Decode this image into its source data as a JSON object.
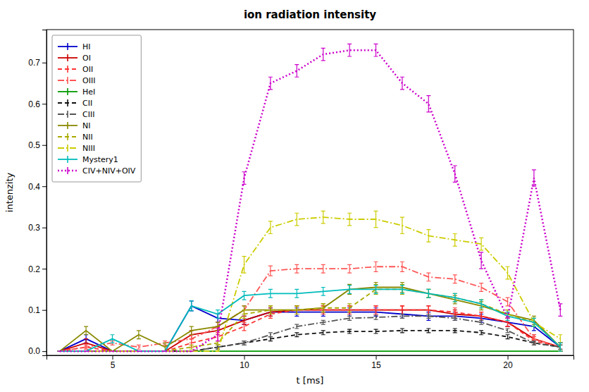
{
  "chart_data": {
    "type": "line",
    "title": "ion radiation intensity",
    "x_label": "t [ms]",
    "y_label": "intenzity",
    "xlim": [
      2.5,
      22.5
    ],
    "ylim": [
      -0.01,
      0.78
    ],
    "xticks": [
      5,
      10,
      15,
      20
    ],
    "yticks": [
      {
        "value": 0.0,
        "label": "0.0"
      },
      0.1,
      0.2,
      0.3,
      0.4,
      0.5,
      0.6,
      0.7
    ],
    "grid": false,
    "legend": "upper left",
    "series": [
      {
        "name": "HI",
        "color": "#0000cc",
        "line_style": "solid",
        "x": [
          3,
          4,
          5,
          6,
          7,
          8,
          9,
          10,
          11,
          12,
          13,
          14,
          15,
          16,
          17,
          18,
          19,
          20,
          21,
          22
        ],
        "values": [
          0.0,
          0.03,
          0.0,
          0.0,
          0.0,
          0.11,
          0.08,
          0.075,
          0.095,
          0.095,
          0.095,
          0.095,
          0.095,
          0.09,
          0.085,
          0.085,
          0.08,
          0.07,
          0.06,
          0.01
        ],
        "errors": [
          0.0,
          0.01,
          0.0,
          0.0,
          0.0,
          0.012,
          0.01,
          0.01,
          0.01,
          0.01,
          0.01,
          0.01,
          0.01,
          0.01,
          0.01,
          0.01,
          0.01,
          0.01,
          0.01,
          0.01
        ]
      },
      {
        "name": "OI",
        "color": "#cc0000",
        "line_style": "solid",
        "x": [
          3,
          4,
          5,
          6,
          7,
          8,
          9,
          10,
          11,
          12,
          13,
          14,
          15,
          16,
          17,
          18,
          19,
          20,
          21,
          22
        ],
        "values": [
          0.0,
          0.02,
          0.0,
          0.0,
          0.0,
          0.04,
          0.05,
          0.075,
          0.095,
          0.1,
          0.1,
          0.1,
          0.1,
          0.1,
          0.1,
          0.09,
          0.085,
          0.07,
          0.03,
          0.01
        ],
        "errors": [
          0.0,
          0.01,
          0.0,
          0.0,
          0.0,
          0.01,
          0.01,
          0.01,
          0.01,
          0.01,
          0.01,
          0.01,
          0.01,
          0.01,
          0.01,
          0.01,
          0.01,
          0.01,
          0.01,
          0.01
        ]
      },
      {
        "name": "OII",
        "color": "#ff3333",
        "line_style": "dashed",
        "x": [
          3,
          4,
          5,
          6,
          7,
          8,
          9,
          10,
          11,
          12,
          13,
          14,
          15,
          16,
          17,
          18,
          19,
          20,
          21,
          22
        ],
        "values": [
          0.0,
          0.01,
          0.0,
          0.0,
          0.0,
          0.02,
          0.035,
          0.06,
          0.09,
          0.1,
          0.1,
          0.1,
          0.1,
          0.1,
          0.1,
          0.095,
          0.085,
          0.07,
          0.025,
          0.01
        ],
        "errors": [
          0.0,
          0.005,
          0.0,
          0.0,
          0.0,
          0.01,
          0.01,
          0.01,
          0.01,
          0.01,
          0.01,
          0.01,
          0.01,
          0.01,
          0.01,
          0.01,
          0.01,
          0.01,
          0.01,
          0.01
        ]
      },
      {
        "name": "OIII",
        "color": "#ff5555",
        "line_style": "dashdot",
        "x": [
          3,
          4,
          5,
          6,
          7,
          8,
          9,
          10,
          11,
          12,
          13,
          14,
          15,
          16,
          17,
          18,
          19,
          20,
          21,
          22
        ],
        "values": [
          0.0,
          0.01,
          0.02,
          0.01,
          0.02,
          0.03,
          0.06,
          0.1,
          0.195,
          0.2,
          0.2,
          0.2,
          0.205,
          0.205,
          0.18,
          0.175,
          0.155,
          0.12,
          0.03,
          0.01
        ],
        "errors": [
          0.0,
          0.005,
          0.005,
          0.005,
          0.005,
          0.01,
          0.01,
          0.01,
          0.012,
          0.01,
          0.01,
          0.01,
          0.012,
          0.012,
          0.01,
          0.01,
          0.01,
          0.01,
          0.01,
          0.01
        ]
      },
      {
        "name": "HeI",
        "color": "#009900",
        "line_style": "solid",
        "x": [
          3,
          22
        ],
        "values": [
          0.0,
          0.0
        ],
        "errors": [
          0.0,
          0.0
        ]
      },
      {
        "name": "CII",
        "color": "#111111",
        "line_style": "dashed",
        "x": [
          3,
          4,
          5,
          6,
          7,
          8,
          9,
          10,
          11,
          12,
          13,
          14,
          15,
          16,
          17,
          18,
          19,
          20,
          21,
          22
        ],
        "values": [
          0.0,
          0.0,
          0.0,
          0.0,
          0.0,
          0.0,
          0.01,
          0.02,
          0.03,
          0.04,
          0.045,
          0.048,
          0.048,
          0.05,
          0.05,
          0.05,
          0.045,
          0.035,
          0.02,
          0.01
        ],
        "errors": [
          0.0,
          0.0,
          0.0,
          0.0,
          0.0,
          0.0,
          0.005,
          0.005,
          0.005,
          0.005,
          0.005,
          0.005,
          0.005,
          0.005,
          0.005,
          0.005,
          0.005,
          0.005,
          0.005,
          0.005
        ]
      },
      {
        "name": "CIII",
        "color": "#555555",
        "line_style": "dashdot",
        "x": [
          3,
          4,
          5,
          6,
          7,
          8,
          9,
          10,
          11,
          12,
          13,
          14,
          15,
          16,
          17,
          18,
          19,
          20,
          21,
          22
        ],
        "values": [
          0.0,
          0.0,
          0.0,
          0.0,
          0.0,
          0.0,
          0.01,
          0.02,
          0.04,
          0.06,
          0.07,
          0.08,
          0.082,
          0.085,
          0.085,
          0.08,
          0.07,
          0.05,
          0.02,
          0.01
        ],
        "errors": [
          0.0,
          0.0,
          0.0,
          0.0,
          0.0,
          0.0,
          0.005,
          0.005,
          0.005,
          0.005,
          0.005,
          0.005,
          0.005,
          0.005,
          0.005,
          0.005,
          0.005,
          0.005,
          0.005,
          0.005
        ]
      },
      {
        "name": "NI",
        "color": "#888800",
        "line_style": "solid",
        "x": [
          3,
          4,
          5,
          6,
          7,
          8,
          9,
          10,
          11,
          12,
          13,
          14,
          15,
          16,
          17,
          18,
          19,
          20,
          21,
          22
        ],
        "values": [
          0.0,
          0.05,
          0.0,
          0.04,
          0.01,
          0.05,
          0.06,
          0.1,
          0.1,
          0.1,
          0.105,
          0.15,
          0.155,
          0.155,
          0.14,
          0.125,
          0.11,
          0.09,
          0.075,
          0.01
        ],
        "errors": [
          0.0,
          0.01,
          0.0,
          0.01,
          0.01,
          0.01,
          0.01,
          0.01,
          0.01,
          0.01,
          0.01,
          0.012,
          0.012,
          0.012,
          0.01,
          0.01,
          0.01,
          0.01,
          0.01,
          0.01
        ]
      },
      {
        "name": "NII",
        "color": "#aaaa00",
        "line_style": "dashed",
        "x": [
          3,
          4,
          5,
          6,
          7,
          8,
          9,
          10,
          11,
          12,
          13,
          14,
          15,
          16,
          17,
          18,
          19,
          20,
          21,
          22
        ],
        "values": [
          0.0,
          0.0,
          0.0,
          0.0,
          0.0,
          0.01,
          0.02,
          0.09,
          0.1,
          0.1,
          0.105,
          0.105,
          0.15,
          0.15,
          0.14,
          0.13,
          0.115,
          0.09,
          0.07,
          0.01
        ],
        "errors": [
          0.0,
          0.0,
          0.0,
          0.0,
          0.0,
          0.005,
          0.005,
          0.01,
          0.01,
          0.01,
          0.01,
          0.01,
          0.012,
          0.012,
          0.01,
          0.01,
          0.01,
          0.01,
          0.01,
          0.01
        ]
      },
      {
        "name": "NIII",
        "color": "#cccc00",
        "line_style": "dashdot",
        "x": [
          3,
          4,
          5,
          6,
          7,
          8,
          9,
          10,
          11,
          12,
          13,
          14,
          15,
          16,
          17,
          18,
          19,
          20,
          21,
          22
        ],
        "values": [
          0.0,
          0.0,
          0.0,
          0.0,
          0.0,
          0.0,
          0.0,
          0.21,
          0.3,
          0.32,
          0.325,
          0.32,
          0.32,
          0.305,
          0.28,
          0.27,
          0.26,
          0.19,
          0.07,
          0.03
        ],
        "errors": [
          0.0,
          0.0,
          0.0,
          0.0,
          0.0,
          0.0,
          0.0,
          0.02,
          0.015,
          0.015,
          0.015,
          0.015,
          0.02,
          0.02,
          0.015,
          0.015,
          0.015,
          0.015,
          0.01,
          0.01
        ]
      },
      {
        "name": "Mystery1",
        "color": "#00bbbb",
        "line_style": "solid",
        "x": [
          3,
          4,
          5,
          6,
          7,
          8,
          9,
          10,
          11,
          12,
          13,
          14,
          15,
          16,
          17,
          18,
          19,
          20,
          21,
          22
        ],
        "values": [
          0.0,
          0.0,
          0.03,
          0.0,
          0.0,
          0.11,
          0.09,
          0.135,
          0.14,
          0.14,
          0.145,
          0.15,
          0.15,
          0.15,
          0.14,
          0.13,
          0.115,
          0.085,
          0.07,
          0.01
        ],
        "errors": [
          0.0,
          0.0,
          0.01,
          0.0,
          0.0,
          0.012,
          0.01,
          0.01,
          0.01,
          0.01,
          0.01,
          0.01,
          0.01,
          0.01,
          0.01,
          0.01,
          0.01,
          0.01,
          0.01,
          0.01
        ]
      },
      {
        "name": "CIV+NIV+OIV",
        "color": "#cc00cc",
        "line_style": "dotted",
        "x": [
          3,
          4,
          5,
          6,
          7,
          8,
          9,
          10,
          11,
          12,
          13,
          14,
          15,
          16,
          17,
          18,
          19,
          20,
          21,
          22
        ],
        "values": [
          0.0,
          0.0,
          0.0,
          0.0,
          0.0,
          0.0,
          0.04,
          0.42,
          0.65,
          0.68,
          0.72,
          0.73,
          0.73,
          0.65,
          0.6,
          0.43,
          0.22,
          0.08,
          0.42,
          0.1
        ],
        "errors": [
          0.0,
          0.0,
          0.0,
          0.0,
          0.0,
          0.0,
          0.015,
          0.015,
          0.015,
          0.015,
          0.015,
          0.015,
          0.015,
          0.015,
          0.02,
          0.02,
          0.02,
          0.0,
          0.02,
          0.015
        ]
      }
    ]
  }
}
